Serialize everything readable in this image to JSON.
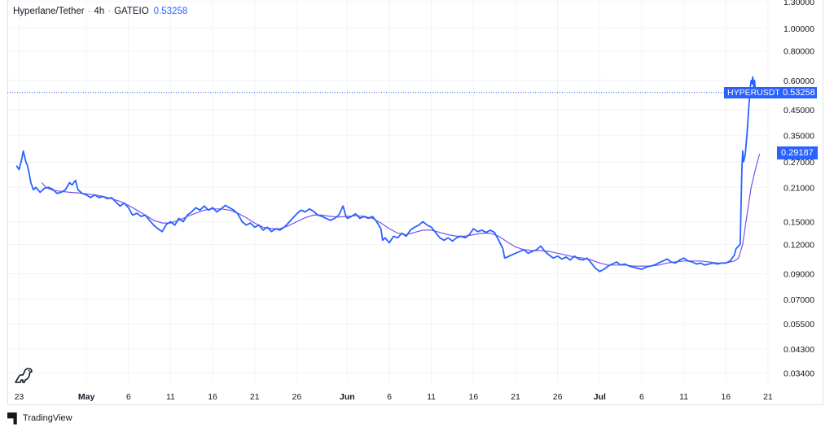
{
  "legend": {
    "pair": "Hyperlane/Tether",
    "interval": "4h",
    "exchange": "GATEIO",
    "last_price": "0.53258"
  },
  "tags": {
    "symbol": "HYPERUSDT",
    "last": "0.53258",
    "ma": "0.29187"
  },
  "footer": {
    "brand": "TradingView"
  },
  "colors": {
    "price_line": "#2962ff",
    "ma_line": "#7b4ff0",
    "grid": "#f0f3fa"
  },
  "chart_data": {
    "type": "line",
    "y_scale": "log",
    "ylim": [
      0.031,
      1.32
    ],
    "y_ticks": [
      "1.30000",
      "1.00000",
      "0.80000",
      "0.60000",
      "0.45000",
      "0.35000",
      "0.27000",
      "0.21000",
      "0.15000",
      "0.12000",
      "0.09000",
      "0.07000",
      "0.05500",
      "0.04300",
      "0.03400"
    ],
    "y_tick_values": [
      1.3,
      1.0,
      0.8,
      0.6,
      0.45,
      0.35,
      0.27,
      0.21,
      0.15,
      0.12,
      0.09,
      0.07,
      0.055,
      0.043,
      0.034
    ],
    "x_ticks": [
      {
        "label": "23",
        "day": 0
      },
      {
        "label": "May",
        "day": 8,
        "month": true
      },
      {
        "label": "6",
        "day": 13
      },
      {
        "label": "11",
        "day": 18
      },
      {
        "label": "16",
        "day": 23
      },
      {
        "label": "21",
        "day": 28
      },
      {
        "label": "26",
        "day": 33
      },
      {
        "label": "Jun",
        "day": 39,
        "month": true
      },
      {
        "label": "6",
        "day": 44
      },
      {
        "label": "11",
        "day": 49
      },
      {
        "label": "16",
        "day": 54
      },
      {
        "label": "21",
        "day": 59
      },
      {
        "label": "26",
        "day": 64
      },
      {
        "label": "Jul",
        "day": 69,
        "month": true
      },
      {
        "label": "6",
        "day": 74
      },
      {
        "label": "11",
        "day": 79
      },
      {
        "label": "16",
        "day": 84
      },
      {
        "label": "21",
        "day": 89
      }
    ],
    "xlim": [
      -1.3,
      89.2
    ],
    "last_value": 0.53258,
    "series": [
      {
        "points": [
          [
            -0.3,
            0.26
          ],
          [
            0.0,
            0.25
          ],
          [
            0.3,
            0.275
          ],
          [
            0.5,
            0.3
          ],
          [
            0.8,
            0.27
          ],
          [
            1.0,
            0.26
          ],
          [
            1.2,
            0.24
          ],
          [
            1.4,
            0.22
          ],
          [
            1.7,
            0.205
          ],
          [
            2.0,
            0.21
          ],
          [
            2.5,
            0.2
          ],
          [
            3.0,
            0.208
          ],
          [
            3.5,
            0.21
          ],
          [
            4.0,
            0.206
          ],
          [
            4.5,
            0.198
          ],
          [
            5.0,
            0.2
          ],
          [
            5.5,
            0.205
          ],
          [
            6.0,
            0.22
          ],
          [
            6.3,
            0.215
          ],
          [
            6.7,
            0.225
          ],
          [
            7.0,
            0.205
          ],
          [
            7.5,
            0.198
          ],
          [
            8.0,
            0.195
          ],
          [
            8.5,
            0.19
          ],
          [
            9.0,
            0.195
          ],
          [
            9.5,
            0.19
          ],
          [
            10.0,
            0.192
          ],
          [
            10.5,
            0.188
          ],
          [
            11.0,
            0.19
          ],
          [
            11.5,
            0.182
          ],
          [
            12.0,
            0.175
          ],
          [
            12.5,
            0.18
          ],
          [
            13.0,
            0.172
          ],
          [
            13.5,
            0.16
          ],
          [
            14.0,
            0.163
          ],
          [
            14.5,
            0.158
          ],
          [
            15.0,
            0.16
          ],
          [
            15.5,
            0.152
          ],
          [
            16.0,
            0.145
          ],
          [
            16.5,
            0.14
          ],
          [
            17.0,
            0.136
          ],
          [
            17.5,
            0.146
          ],
          [
            18.0,
            0.15
          ],
          [
            18.5,
            0.145
          ],
          [
            19.0,
            0.155
          ],
          [
            19.5,
            0.15
          ],
          [
            20.0,
            0.16
          ],
          [
            20.5,
            0.165
          ],
          [
            21.0,
            0.172
          ],
          [
            21.5,
            0.168
          ],
          [
            22.0,
            0.175
          ],
          [
            22.5,
            0.168
          ],
          [
            23.0,
            0.172
          ],
          [
            23.5,
            0.165
          ],
          [
            24.0,
            0.17
          ],
          [
            24.5,
            0.176
          ],
          [
            25.0,
            0.172
          ],
          [
            25.5,
            0.168
          ],
          [
            26.0,
            0.162
          ],
          [
            26.5,
            0.15
          ],
          [
            27.0,
            0.145
          ],
          [
            27.5,
            0.148
          ],
          [
            28.0,
            0.142
          ],
          [
            28.5,
            0.145
          ],
          [
            29.0,
            0.138
          ],
          [
            29.5,
            0.142
          ],
          [
            30.0,
            0.136
          ],
          [
            30.5,
            0.14
          ],
          [
            31.0,
            0.138
          ],
          [
            31.5,
            0.142
          ],
          [
            32.0,
            0.148
          ],
          [
            32.5,
            0.155
          ],
          [
            33.0,
            0.162
          ],
          [
            33.5,
            0.168
          ],
          [
            34.0,
            0.165
          ],
          [
            34.5,
            0.17
          ],
          [
            35.0,
            0.166
          ],
          [
            35.5,
            0.16
          ],
          [
            36.0,
            0.158
          ],
          [
            36.5,
            0.155
          ],
          [
            37.0,
            0.152
          ],
          [
            37.5,
            0.155
          ],
          [
            38.0,
            0.16
          ],
          [
            38.5,
            0.175
          ],
          [
            38.8,
            0.16
          ],
          [
            39.0,
            0.155
          ],
          [
            39.5,
            0.158
          ],
          [
            40.0,
            0.162
          ],
          [
            40.5,
            0.155
          ],
          [
            41.0,
            0.158
          ],
          [
            41.5,
            0.155
          ],
          [
            42.0,
            0.158
          ],
          [
            42.5,
            0.15
          ],
          [
            43.0,
            0.14
          ],
          [
            43.2,
            0.125
          ],
          [
            43.5,
            0.128
          ],
          [
            44.0,
            0.122
          ],
          [
            44.5,
            0.13
          ],
          [
            45.0,
            0.128
          ],
          [
            45.5,
            0.134
          ],
          [
            46.0,
            0.13
          ],
          [
            46.5,
            0.138
          ],
          [
            47.0,
            0.142
          ],
          [
            47.5,
            0.145
          ],
          [
            48.0,
            0.15
          ],
          [
            48.5,
            0.145
          ],
          [
            49.0,
            0.142
          ],
          [
            49.5,
            0.135
          ],
          [
            50.0,
            0.128
          ],
          [
            50.5,
            0.125
          ],
          [
            51.0,
            0.128
          ],
          [
            51.5,
            0.124
          ],
          [
            52.0,
            0.128
          ],
          [
            52.5,
            0.13
          ],
          [
            53.0,
            0.128
          ],
          [
            53.5,
            0.132
          ],
          [
            54.0,
            0.14
          ],
          [
            54.5,
            0.136
          ],
          [
            55.0,
            0.138
          ],
          [
            55.5,
            0.135
          ],
          [
            56.0,
            0.138
          ],
          [
            56.5,
            0.135
          ],
          [
            57.0,
            0.125
          ],
          [
            57.5,
            0.115
          ],
          [
            57.7,
            0.105
          ],
          [
            58.0,
            0.106
          ],
          [
            58.5,
            0.108
          ],
          [
            59.0,
            0.11
          ],
          [
            59.5,
            0.112
          ],
          [
            60.0,
            0.114
          ],
          [
            60.5,
            0.11
          ],
          [
            61.0,
            0.112
          ],
          [
            61.5,
            0.114
          ],
          [
            62.0,
            0.118
          ],
          [
            62.5,
            0.112
          ],
          [
            63.0,
            0.108
          ],
          [
            63.5,
            0.105
          ],
          [
            64.0,
            0.107
          ],
          [
            64.5,
            0.104
          ],
          [
            65.0,
            0.106
          ],
          [
            65.5,
            0.103
          ],
          [
            66.0,
            0.107
          ],
          [
            66.5,
            0.104
          ],
          [
            67.0,
            0.103
          ],
          [
            67.5,
            0.105
          ],
          [
            68.0,
            0.1
          ],
          [
            68.5,
            0.095
          ],
          [
            69.0,
            0.092
          ],
          [
            69.5,
            0.094
          ],
          [
            70.0,
            0.097
          ],
          [
            70.5,
            0.099
          ],
          [
            71.0,
            0.101
          ],
          [
            71.5,
            0.098
          ],
          [
            72.0,
            0.099
          ],
          [
            72.5,
            0.097
          ],
          [
            73.0,
            0.096
          ],
          [
            73.5,
            0.095
          ],
          [
            74.0,
            0.094
          ],
          [
            74.5,
            0.096
          ],
          [
            75.0,
            0.097
          ],
          [
            75.5,
            0.098
          ],
          [
            76.0,
            0.1
          ],
          [
            76.5,
            0.102
          ],
          [
            77.0,
            0.104
          ],
          [
            77.5,
            0.101
          ],
          [
            78.0,
            0.1
          ],
          [
            78.5,
            0.103
          ],
          [
            79.0,
            0.105
          ],
          [
            79.5,
            0.102
          ],
          [
            80.0,
            0.101
          ],
          [
            80.5,
            0.099
          ],
          [
            81.0,
            0.1
          ],
          [
            81.5,
            0.098
          ],
          [
            82.0,
            0.099
          ],
          [
            82.5,
            0.1
          ],
          [
            83.0,
            0.099
          ],
          [
            83.5,
            0.1
          ],
          [
            84.0,
            0.1
          ],
          [
            84.5,
            0.102
          ],
          [
            85.0,
            0.108
          ],
          [
            85.2,
            0.115
          ],
          [
            85.5,
            0.118
          ],
          [
            85.7,
            0.12
          ],
          [
            85.9,
            0.25
          ],
          [
            86.0,
            0.3
          ],
          [
            86.1,
            0.27
          ],
          [
            86.3,
            0.29
          ],
          [
            86.5,
            0.35
          ],
          [
            86.7,
            0.45
          ],
          [
            86.8,
            0.5
          ],
          [
            86.9,
            0.56
          ],
          [
            87.0,
            0.6
          ],
          [
            87.1,
            0.58
          ],
          [
            87.2,
            0.62
          ],
          [
            87.3,
            0.56
          ],
          [
            87.4,
            0.6
          ],
          [
            87.5,
            0.55
          ],
          [
            87.6,
            0.53
          ],
          [
            87.8,
            0.532
          ]
        ]
      },
      {
        "points": [
          [
            2.7,
            0.22
          ],
          [
            3.2,
            0.21
          ],
          [
            4.0,
            0.204
          ],
          [
            5.0,
            0.202
          ],
          [
            6.0,
            0.2
          ],
          [
            7.0,
            0.199
          ],
          [
            8.0,
            0.197
          ],
          [
            9.0,
            0.195
          ],
          [
            10.0,
            0.192
          ],
          [
            11.0,
            0.188
          ],
          [
            12.0,
            0.183
          ],
          [
            13.0,
            0.176
          ],
          [
            14.0,
            0.168
          ],
          [
            15.0,
            0.16
          ],
          [
            16.0,
            0.152
          ],
          [
            17.0,
            0.148
          ],
          [
            18.0,
            0.148
          ],
          [
            19.0,
            0.152
          ],
          [
            20.0,
            0.158
          ],
          [
            21.0,
            0.163
          ],
          [
            22.0,
            0.168
          ],
          [
            23.0,
            0.17
          ],
          [
            24.0,
            0.17
          ],
          [
            25.0,
            0.168
          ],
          [
            26.0,
            0.163
          ],
          [
            27.0,
            0.156
          ],
          [
            28.0,
            0.148
          ],
          [
            29.0,
            0.142
          ],
          [
            30.0,
            0.14
          ],
          [
            31.0,
            0.14
          ],
          [
            32.0,
            0.144
          ],
          [
            33.0,
            0.15
          ],
          [
            34.0,
            0.156
          ],
          [
            35.0,
            0.16
          ],
          [
            36.0,
            0.16
          ],
          [
            37.0,
            0.158
          ],
          [
            38.0,
            0.157
          ],
          [
            39.0,
            0.158
          ],
          [
            40.0,
            0.159
          ],
          [
            41.0,
            0.158
          ],
          [
            42.0,
            0.155
          ],
          [
            43.0,
            0.148
          ],
          [
            44.0,
            0.14
          ],
          [
            45.0,
            0.134
          ],
          [
            46.0,
            0.132
          ],
          [
            47.0,
            0.135
          ],
          [
            48.0,
            0.138
          ],
          [
            49.0,
            0.138
          ],
          [
            50.0,
            0.135
          ],
          [
            51.0,
            0.132
          ],
          [
            52.0,
            0.13
          ],
          [
            53.0,
            0.13
          ],
          [
            54.0,
            0.132
          ],
          [
            55.0,
            0.134
          ],
          [
            56.0,
            0.134
          ],
          [
            57.0,
            0.13
          ],
          [
            58.0,
            0.123
          ],
          [
            59.0,
            0.117
          ],
          [
            60.0,
            0.114
          ],
          [
            61.0,
            0.113
          ],
          [
            62.0,
            0.113
          ],
          [
            63.0,
            0.112
          ],
          [
            64.0,
            0.11
          ],
          [
            65.0,
            0.108
          ],
          [
            66.0,
            0.106
          ],
          [
            67.0,
            0.105
          ],
          [
            68.0,
            0.103
          ],
          [
            69.0,
            0.1
          ],
          [
            70.0,
            0.098
          ],
          [
            71.0,
            0.098
          ],
          [
            72.0,
            0.098
          ],
          [
            73.0,
            0.097
          ],
          [
            74.0,
            0.097
          ],
          [
            75.0,
            0.097
          ],
          [
            76.0,
            0.098
          ],
          [
            77.0,
            0.1
          ],
          [
            78.0,
            0.101
          ],
          [
            79.0,
            0.102
          ],
          [
            80.0,
            0.102
          ],
          [
            81.0,
            0.102
          ],
          [
            82.0,
            0.101
          ],
          [
            83.0,
            0.1
          ],
          [
            84.0,
            0.1
          ],
          [
            85.0,
            0.102
          ],
          [
            85.5,
            0.105
          ],
          [
            86.0,
            0.12
          ],
          [
            86.5,
            0.16
          ],
          [
            87.0,
            0.21
          ],
          [
            87.5,
            0.25
          ],
          [
            88.0,
            0.29187
          ]
        ]
      }
    ]
  }
}
